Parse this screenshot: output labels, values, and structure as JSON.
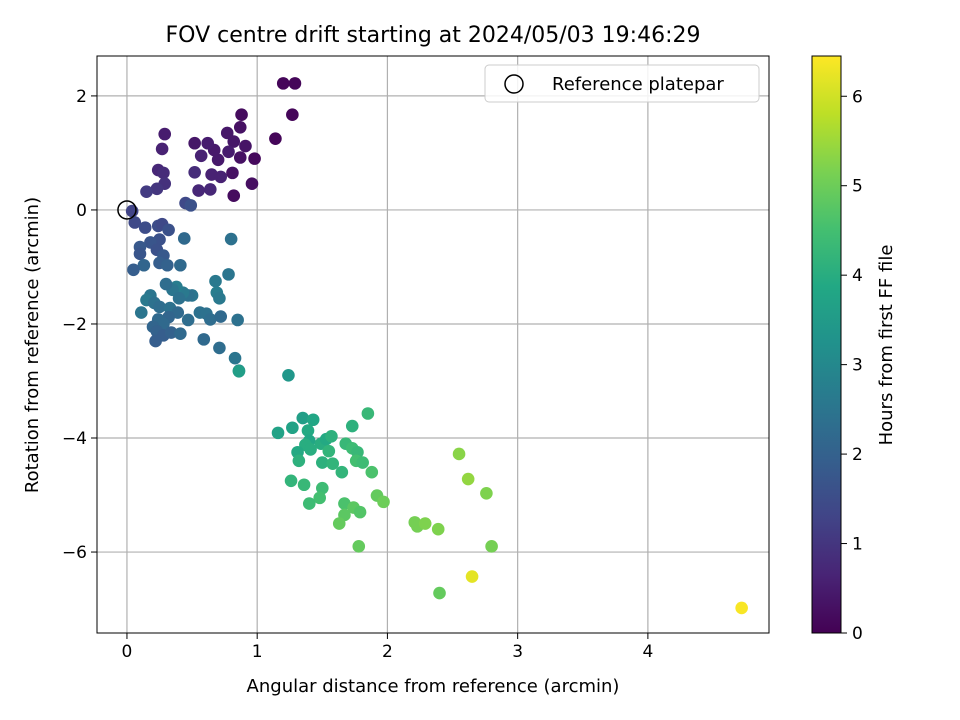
{
  "chart_data": {
    "type": "scatter",
    "title": "FOV centre drift starting at 2024/05/03 19:46:29",
    "xlabel": "Angular distance from reference (arcmin)",
    "ylabel": "Rotation from reference (arcmin)",
    "xlim": [
      -0.23,
      4.93
    ],
    "ylim": [
      -7.42,
      2.7
    ],
    "xticks": [
      0,
      1,
      2,
      3,
      4
    ],
    "yticks": [
      2,
      0,
      -2,
      -4,
      -6
    ],
    "xtick_labels": [
      "0",
      "1",
      "2",
      "3",
      "4"
    ],
    "ytick_labels": [
      "2",
      "0",
      "−2",
      "−4",
      "−6"
    ],
    "grid": true,
    "legend": {
      "position": "top-right",
      "entries": [
        "Reference platepar"
      ]
    },
    "reference_point": {
      "x": 0,
      "y": 0
    },
    "colorbar": {
      "label": "Hours from first FF file",
      "range": [
        0,
        6.45
      ],
      "ticks": [
        0,
        1,
        2,
        3,
        4,
        5,
        6
      ],
      "tick_labels": [
        "0",
        "1",
        "2",
        "3",
        "4",
        "5",
        "6"
      ],
      "colormap": "viridis"
    },
    "points": [
      [
        1.2,
        2.22,
        0.1
      ],
      [
        1.29,
        2.22,
        0.1
      ],
      [
        1.27,
        1.67,
        0.1
      ],
      [
        0.88,
        1.67,
        0.2
      ],
      [
        1.14,
        1.25,
        0.1
      ],
      [
        0.98,
        0.9,
        0.15
      ],
      [
        0.96,
        0.46,
        0.25
      ],
      [
        0.82,
        0.25,
        0.2
      ],
      [
        0.81,
        0.65,
        0.3
      ],
      [
        0.87,
        0.92,
        0.3
      ],
      [
        0.91,
        1.12,
        0.35
      ],
      [
        0.87,
        1.45,
        0.3
      ],
      [
        0.77,
        1.35,
        0.4
      ],
      [
        0.82,
        1.2,
        0.4
      ],
      [
        0.78,
        1.02,
        0.5
      ],
      [
        0.7,
        0.88,
        0.45
      ],
      [
        0.67,
        1.05,
        0.45
      ],
      [
        0.62,
        1.17,
        0.5
      ],
      [
        0.57,
        0.95,
        0.6
      ],
      [
        0.52,
        1.17,
        0.4
      ],
      [
        0.65,
        0.62,
        0.6
      ],
      [
        0.72,
        0.58,
        0.6
      ],
      [
        0.64,
        0.36,
        0.7
      ],
      [
        0.55,
        0.34,
        0.7
      ],
      [
        0.52,
        0.66,
        0.8
      ],
      [
        0.29,
        1.33,
        0.5
      ],
      [
        0.27,
        1.07,
        0.6
      ],
      [
        0.24,
        0.7,
        0.7
      ],
      [
        0.28,
        0.65,
        0.8
      ],
      [
        0.29,
        0.46,
        0.9
      ],
      [
        0.23,
        0.37,
        1.0
      ],
      [
        0.15,
        0.32,
        1.1
      ],
      [
        0.45,
        0.12,
        1.4
      ],
      [
        0.49,
        0.08,
        1.6
      ],
      [
        0.04,
        -0.02,
        1.3
      ],
      [
        0.06,
        -0.22,
        1.4
      ],
      [
        0.14,
        -0.31,
        1.5
      ],
      [
        0.24,
        -0.28,
        1.5
      ],
      [
        0.27,
        -0.25,
        1.4
      ],
      [
        0.32,
        -0.35,
        1.6
      ],
      [
        0.25,
        -0.52,
        1.6
      ],
      [
        0.18,
        -0.57,
        1.7
      ],
      [
        0.1,
        -0.65,
        1.8
      ],
      [
        0.1,
        -0.77,
        1.7
      ],
      [
        0.23,
        -0.7,
        1.6
      ],
      [
        0.28,
        -0.8,
        1.8
      ],
      [
        0.25,
        -0.93,
        1.9
      ],
      [
        0.31,
        -0.97,
        2.0
      ],
      [
        0.13,
        -0.97,
        2.1
      ],
      [
        0.05,
        -1.05,
        1.9
      ],
      [
        0.44,
        -0.5,
        2.2
      ],
      [
        0.41,
        -0.97,
        2.2
      ],
      [
        0.8,
        -0.51,
        2.4
      ],
      [
        0.78,
        -1.13,
        2.5
      ],
      [
        0.68,
        -1.25,
        2.6
      ],
      [
        0.69,
        -1.45,
        2.7
      ],
      [
        0.71,
        -1.55,
        2.6
      ],
      [
        0.5,
        -1.5,
        2.5
      ],
      [
        0.47,
        -1.5,
        2.4
      ],
      [
        0.43,
        -1.45,
        2.6
      ],
      [
        0.38,
        -1.35,
        2.7
      ],
      [
        0.35,
        -1.4,
        2.5
      ],
      [
        0.4,
        -1.55,
        2.4
      ],
      [
        0.3,
        -1.3,
        2.3
      ],
      [
        0.18,
        -1.5,
        2.5
      ],
      [
        0.15,
        -1.58,
        2.6
      ],
      [
        0.21,
        -1.63,
        2.4
      ],
      [
        0.25,
        -1.7,
        2.3
      ],
      [
        0.11,
        -1.8,
        2.5
      ],
      [
        0.33,
        -1.72,
        2.4
      ],
      [
        0.39,
        -1.8,
        2.2
      ],
      [
        0.32,
        -1.88,
        2.1
      ],
      [
        0.24,
        -1.92,
        2.2
      ],
      [
        0.28,
        -2.0,
        2.2
      ],
      [
        0.2,
        -2.05,
        2.1
      ],
      [
        0.23,
        -2.13,
        2.0
      ],
      [
        0.28,
        -2.2,
        1.9
      ],
      [
        0.22,
        -2.3,
        1.9
      ],
      [
        0.34,
        -2.15,
        2.0
      ],
      [
        0.41,
        -2.17,
        2.2
      ],
      [
        0.47,
        -1.93,
        2.3
      ],
      [
        0.56,
        -1.8,
        2.4
      ],
      [
        0.61,
        -1.82,
        2.4
      ],
      [
        0.64,
        -1.92,
        2.3
      ],
      [
        0.72,
        -1.87,
        2.2
      ],
      [
        0.85,
        -1.93,
        2.4
      ],
      [
        0.59,
        -2.27,
        2.2
      ],
      [
        0.71,
        -2.42,
        2.3
      ],
      [
        0.83,
        -2.6,
        2.5
      ],
      [
        0.86,
        -2.82,
        3.0
      ],
      [
        0.86,
        -2.83,
        3.6
      ],
      [
        1.24,
        -2.9,
        3.4
      ],
      [
        1.16,
        -3.91,
        3.7
      ],
      [
        1.35,
        -3.65,
        3.6
      ],
      [
        1.43,
        -3.68,
        3.8
      ],
      [
        1.39,
        -3.87,
        3.9
      ],
      [
        1.4,
        -4.05,
        3.8
      ],
      [
        1.37,
        -4.12,
        4.0
      ],
      [
        1.27,
        -3.82,
        3.7
      ],
      [
        1.31,
        -4.25,
        3.9
      ],
      [
        1.32,
        -4.4,
        4.1
      ],
      [
        1.41,
        -4.2,
        4.0
      ],
      [
        1.49,
        -4.1,
        4.0
      ],
      [
        1.53,
        -4.02,
        3.9
      ],
      [
        1.57,
        -3.97,
        4.1
      ],
      [
        1.55,
        -4.23,
        4.2
      ],
      [
        1.5,
        -4.43,
        4.1
      ],
      [
        1.58,
        -4.45,
        4.2
      ],
      [
        1.65,
        -4.6,
        4.2
      ],
      [
        1.68,
        -4.1,
        4.3
      ],
      [
        1.73,
        -4.18,
        4.4
      ],
      [
        1.77,
        -4.25,
        4.3
      ],
      [
        1.76,
        -4.4,
        4.5
      ],
      [
        1.81,
        -4.43,
        4.4
      ],
      [
        1.73,
        -3.79,
        4.1
      ],
      [
        1.85,
        -3.57,
        4.3
      ],
      [
        1.88,
        -4.6,
        4.6
      ],
      [
        1.26,
        -4.75,
        4.2
      ],
      [
        1.36,
        -4.82,
        4.3
      ],
      [
        1.5,
        -4.88,
        4.4
      ],
      [
        1.48,
        -5.05,
        4.5
      ],
      [
        1.4,
        -5.15,
        4.4
      ],
      [
        1.67,
        -5.15,
        4.6
      ],
      [
        1.74,
        -5.22,
        4.8
      ],
      [
        1.79,
        -5.3,
        4.7
      ],
      [
        1.67,
        -5.35,
        4.8
      ],
      [
        1.63,
        -5.5,
        4.9
      ],
      [
        1.92,
        -5.01,
        4.9
      ],
      [
        1.97,
        -5.12,
        5.0
      ],
      [
        1.78,
        -5.9,
        4.9
      ],
      [
        2.21,
        -5.48,
        5.1
      ],
      [
        2.23,
        -5.55,
        5.1
      ],
      [
        2.29,
        -5.5,
        5.2
      ],
      [
        2.39,
        -5.6,
        5.2
      ],
      [
        2.55,
        -4.28,
        5.3
      ],
      [
        2.62,
        -4.72,
        5.4
      ],
      [
        2.76,
        -4.97,
        5.2
      ],
      [
        2.8,
        -5.9,
        5.1
      ],
      [
        2.4,
        -6.72,
        4.9
      ],
      [
        2.65,
        -6.43,
        6.2
      ],
      [
        4.72,
        -6.98,
        6.4
      ]
    ]
  }
}
